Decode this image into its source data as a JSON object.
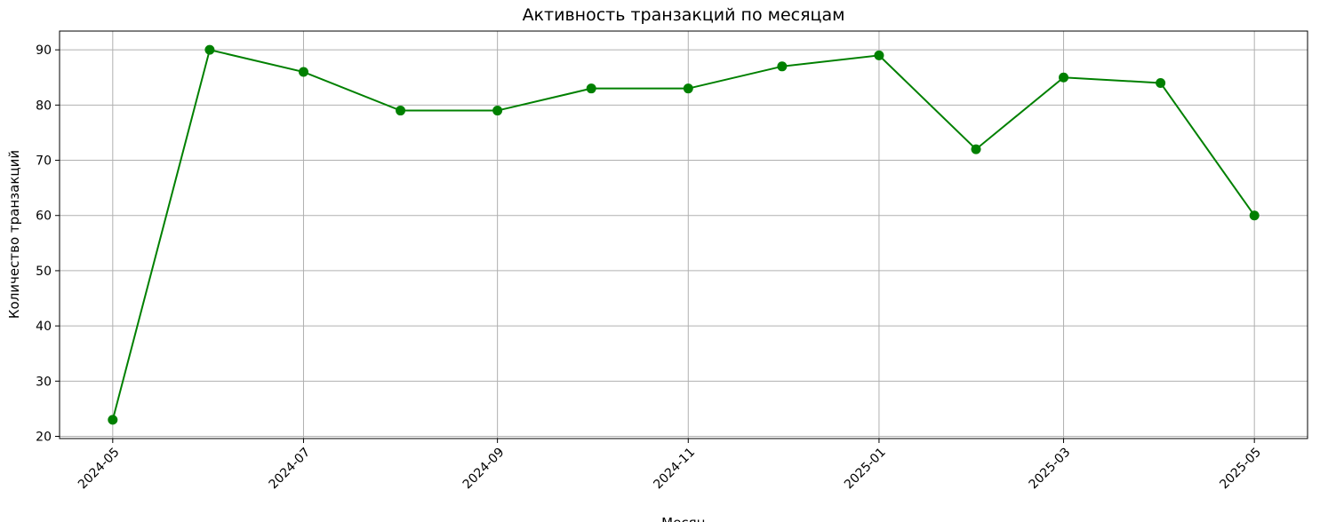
{
  "chart_data": {
    "type": "line",
    "title": "Активность транзакций по месяцам",
    "xlabel": "Месяц",
    "ylabel": "Количество транзакций",
    "x": [
      "2024-05-01",
      "2024-06-01",
      "2024-07-01",
      "2024-08-01",
      "2024-09-01",
      "2024-10-01",
      "2024-11-01",
      "2024-12-01",
      "2025-01-01",
      "2025-02-01",
      "2025-03-01",
      "2025-04-01",
      "2025-05-01"
    ],
    "series": [
      {
        "values": [
          23,
          90,
          86,
          79,
          79,
          83,
          83,
          87,
          89,
          72,
          85,
          84,
          60
        ]
      }
    ],
    "x_tick_labels": [
      "2024-05",
      "2024-07",
      "2024-09",
      "2024-11",
      "2025-01",
      "2025-03",
      "2025-05"
    ],
    "x_ticks": [
      "2024-05-01",
      "2024-07-01",
      "2024-09-01",
      "2024-11-01",
      "2025-01-01",
      "2025-03-01",
      "2025-05-01"
    ],
    "y_ticks": [
      20,
      30,
      40,
      50,
      60,
      70,
      80,
      90
    ],
    "xlim": [
      "2024-04-14",
      "2025-05-18"
    ],
    "ylim": [
      19.6,
      93.4
    ],
    "grid": true,
    "color": "#008000"
  }
}
